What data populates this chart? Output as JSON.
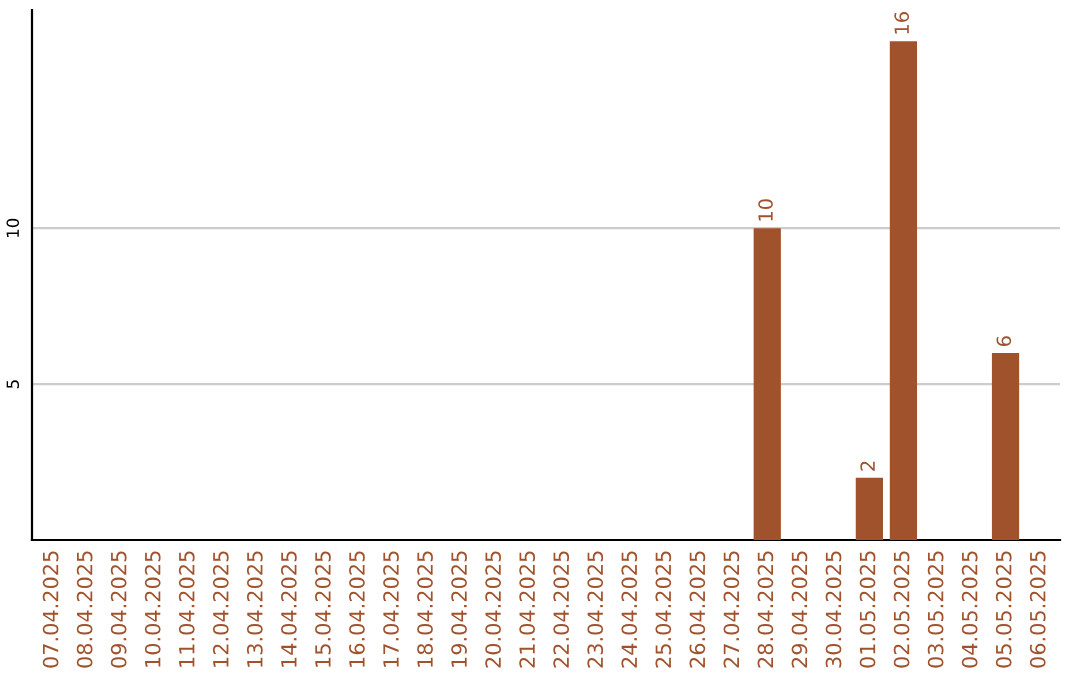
{
  "chart_data": {
    "type": "bar",
    "categories": [
      "07.04.2025",
      "08.04.2025",
      "09.04.2025",
      "10.04.2025",
      "11.04.2025",
      "12.04.2025",
      "13.04.2025",
      "14.04.2025",
      "15.04.2025",
      "16.04.2025",
      "17.04.2025",
      "18.04.2025",
      "19.04.2025",
      "20.04.2025",
      "21.04.2025",
      "22.04.2025",
      "23.04.2025",
      "24.04.2025",
      "25.04.2025",
      "26.04.2025",
      "27.04.2025",
      "28.04.2025",
      "29.04.2025",
      "30.04.2025",
      "01.05.2025",
      "02.05.2025",
      "03.05.2025",
      "04.05.2025",
      "05.05.2025",
      "06.05.2025"
    ],
    "values": [
      0,
      0,
      0,
      0,
      0,
      0,
      0,
      0,
      0,
      0,
      0,
      0,
      0,
      0,
      0,
      0,
      0,
      0,
      0,
      0,
      0,
      10,
      0,
      0,
      2,
      16,
      0,
      0,
      6,
      0
    ],
    "value_labels": [
      null,
      null,
      null,
      null,
      null,
      null,
      null,
      null,
      null,
      null,
      null,
      null,
      null,
      null,
      null,
      null,
      null,
      null,
      null,
      null,
      null,
      "10",
      null,
      null,
      "2",
      "16",
      null,
      null,
      "6",
      null
    ],
    "color": "#a0522d",
    "ylim": [
      0,
      17
    ],
    "yticks": [
      5,
      10
    ],
    "grid": "y"
  }
}
